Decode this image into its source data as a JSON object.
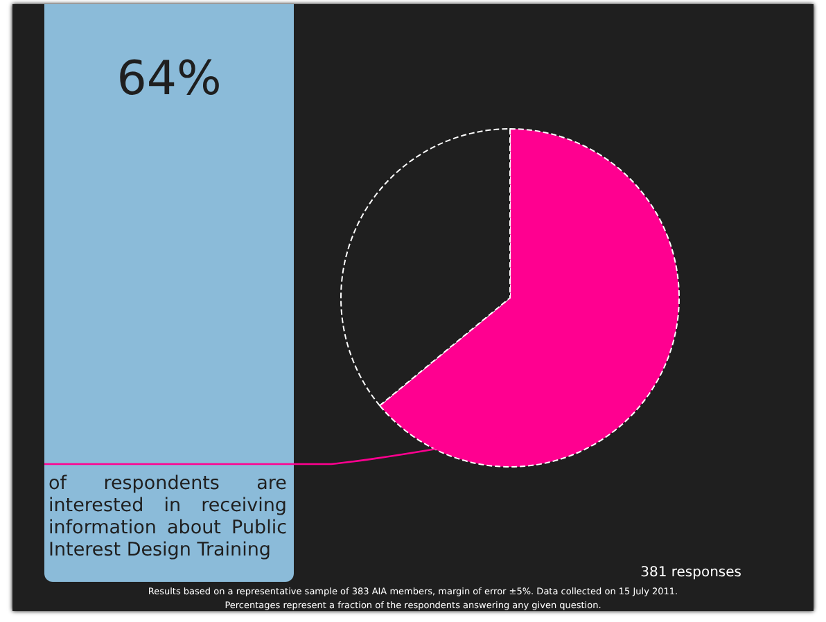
{
  "chart_data": {
    "type": "pie",
    "categories": [
      null,
      null
    ],
    "values": [
      64,
      36
    ],
    "colors": [
      "#ff0090",
      "#1f1f1f"
    ],
    "title": "64%",
    "annotations": [
      "of respondents are interested in receiving information about Public Interest Design Training",
      "381 responses",
      "Results based on a representative sample of 383 AIA members, margin of error ±5%.  Data collected on 15 July 2011.",
      "Percentages represent a fraction of the respondents answering any given question."
    ]
  }
}
